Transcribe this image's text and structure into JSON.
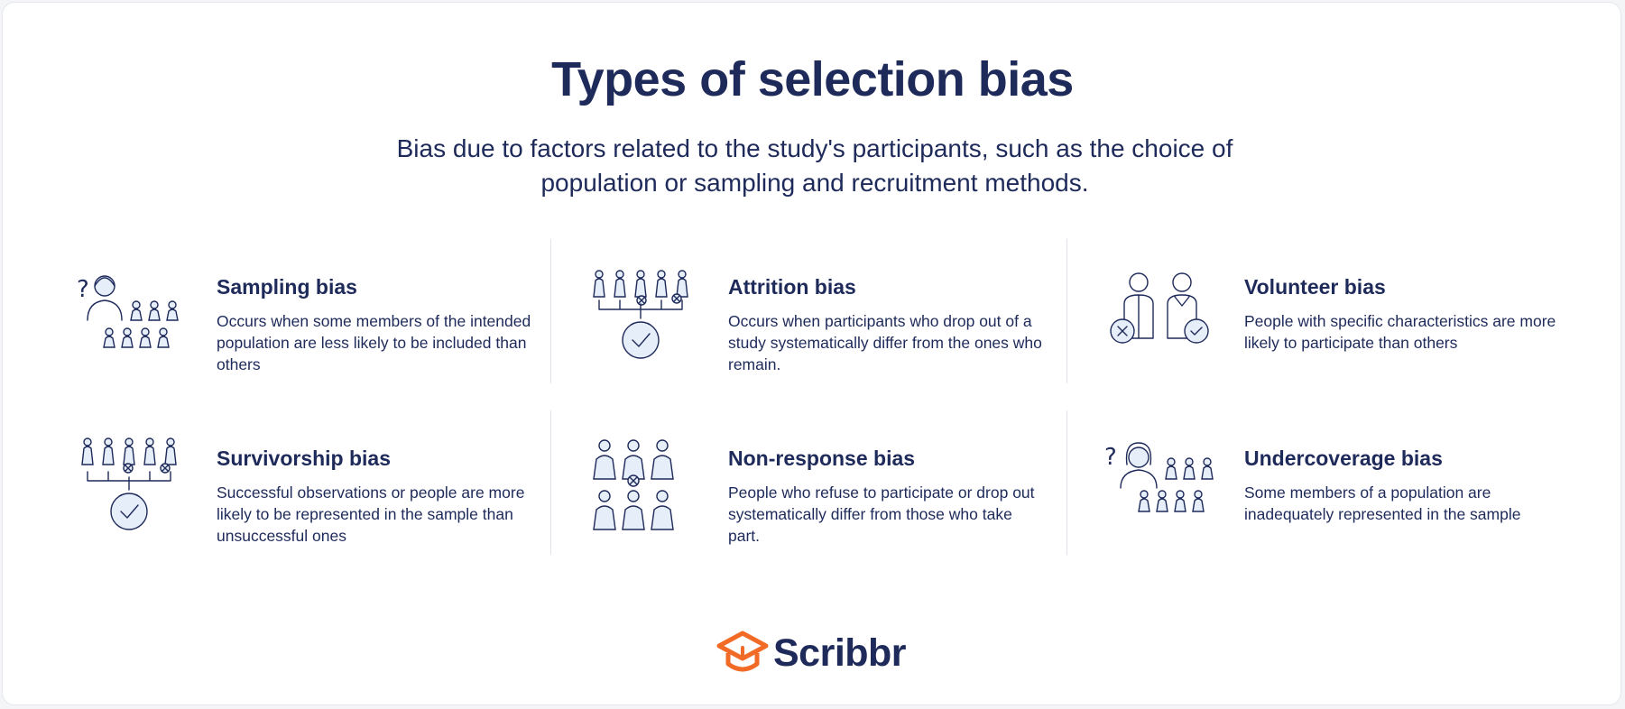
{
  "title": "Types of selection bias",
  "subtitle": "Bias due to factors related to the study's participants, such as the choice of population or sampling and recruitment methods.",
  "biases": [
    {
      "heading": "Sampling bias",
      "description": "Occurs when some members of the intended population are less likely to be included than others",
      "icon": "sampling-people-icon"
    },
    {
      "heading": "Attrition bias",
      "description": "Occurs when participants who drop out of a study systematically differ from the ones who remain.",
      "icon": "attrition-funnel-icon"
    },
    {
      "heading": "Volunteer bias",
      "description": "People with specific characteristics are more likely to participate than others",
      "icon": "volunteer-people-icon"
    },
    {
      "heading": "Survivorship bias",
      "description": "Successful observations or people are more likely to be represented in the sample than unsuccessful ones",
      "icon": "survivorship-funnel-icon"
    },
    {
      "heading": "Non-response bias",
      "description": "People who refuse to participate or drop out systematically differ from those who take part.",
      "icon": "non-response-people-icon"
    },
    {
      "heading": "Undercoverage bias",
      "description": "Some members of a population are inadequately represented in the sample",
      "icon": "undercoverage-people-icon"
    }
  ],
  "brand": {
    "name": "Scribbr",
    "accent": "#f26b26",
    "navy": "#1e2a5a",
    "icon": "graduation-cap-logo-icon"
  }
}
